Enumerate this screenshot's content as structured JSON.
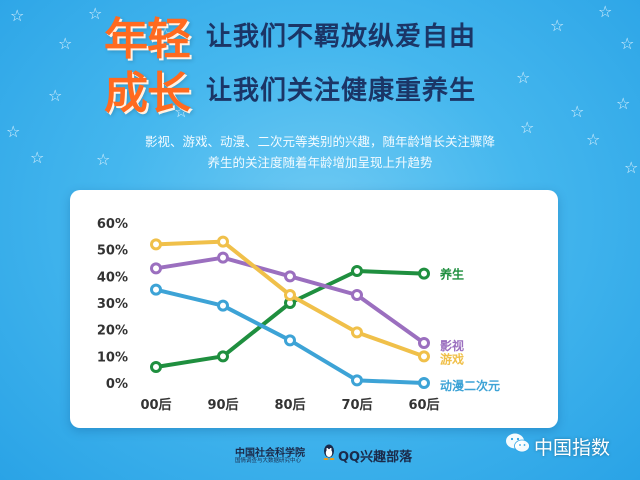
{
  "header": {
    "line1": {
      "big": "年轻",
      "slogan": "让我们不羁放纵爱自由"
    },
    "line2": {
      "big": "成长",
      "slogan": "让我们关注健康重养生"
    }
  },
  "description": {
    "line1": "影视、游戏、动漫、二次元等类别的兴趣，随年龄增长关注骤降",
    "line2": "养生的关注度随着年龄增加呈现上升趋势"
  },
  "chart_data": {
    "type": "line",
    "categories": [
      "00后",
      "90后",
      "80后",
      "70后",
      "60后"
    ],
    "yticks": [
      "0%",
      "10%",
      "20%",
      "30%",
      "40%",
      "50%",
      "60%"
    ],
    "ylim": [
      0,
      60
    ],
    "grid": false,
    "legend": "labels at line ends (right)",
    "series": [
      {
        "name": "养生",
        "color": "#1f8f3f",
        "values": [
          6,
          10,
          30,
          42,
          41
        ]
      },
      {
        "name": "影视",
        "color": "#9b6fbf",
        "values": [
          43,
          47,
          40,
          33,
          15
        ]
      },
      {
        "name": "游戏",
        "color": "#f0c04a",
        "values": [
          52,
          53,
          33,
          19,
          10
        ]
      },
      {
        "name": "动漫二次元",
        "color": "#3da3d6",
        "values": [
          35,
          29,
          16,
          1,
          0
        ]
      }
    ],
    "title": "",
    "xlabel": "",
    "ylabel": ""
  },
  "footer": {
    "org_name": "中国社会科学院",
    "org_sub": "国情调查与大数据研究中心",
    "qq_name": "QQ兴趣部落",
    "watermark": "中国指数"
  },
  "icons": {
    "qq": "qq-penguin-icon",
    "wechat": "wechat-icon"
  }
}
